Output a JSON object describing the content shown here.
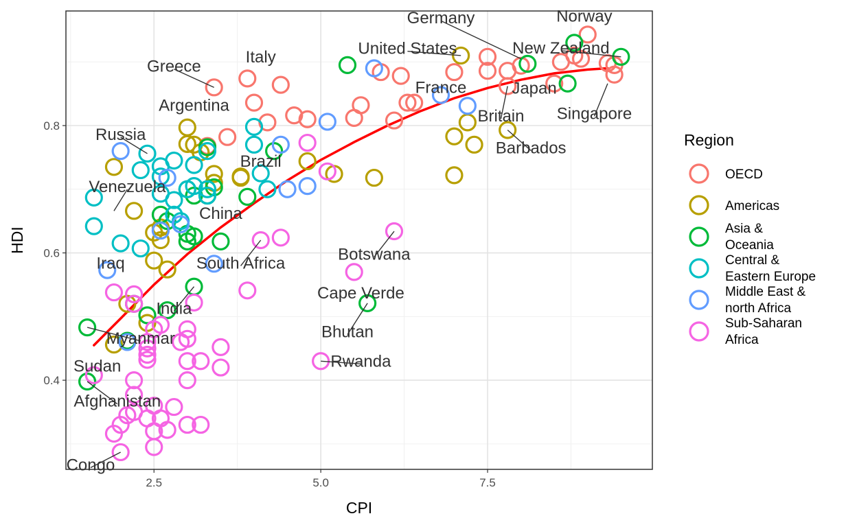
{
  "chart_data": {
    "type": "scatter",
    "title": "",
    "xlabel": "CPI",
    "ylabel": "HDI",
    "xlim": [
      1.18,
      9.97
    ],
    "ylim": [
      0.26,
      0.98
    ],
    "xticks": [
      2.5,
      5.0,
      7.5
    ],
    "xtick_labels": [
      "2.5",
      "5.0",
      "7.5"
    ],
    "yticks": [
      0.4,
      0.6,
      0.8
    ],
    "ytick_labels": [
      "0.4",
      "0.6",
      "0.8"
    ],
    "grid": true,
    "legend": {
      "title": "Region",
      "placement": "right",
      "entries": [
        {
          "key": "OECD",
          "lines": [
            "OECD"
          ],
          "color": "#F8766D"
        },
        {
          "key": "Americas",
          "lines": [
            "Americas"
          ],
          "color": "#B79F00"
        },
        {
          "key": "Asia & Oceania",
          "lines": [
            "Asia &",
            "Oceania"
          ],
          "color": "#00BA38"
        },
        {
          "key": "Central & Eastern Europe",
          "lines": [
            "Central &",
            "Eastern Europe"
          ],
          "color": "#00BFC4"
        },
        {
          "key": "Middle East & north Africa",
          "lines": [
            "Middle East &",
            "north Africa"
          ],
          "color": "#619CFF"
        },
        {
          "key": "Sub-Saharan Africa",
          "lines": [
            "Sub-Saharan",
            "Africa"
          ],
          "color": "#F564E3"
        }
      ]
    },
    "trend_line": {
      "color": "#FF0000",
      "points": [
        [
          1.6,
          0.455
        ],
        [
          2.0,
          0.497
        ],
        [
          2.5,
          0.55
        ],
        [
          3.0,
          0.598
        ],
        [
          3.5,
          0.64
        ],
        [
          4.0,
          0.678
        ],
        [
          4.5,
          0.714
        ],
        [
          5.0,
          0.746
        ],
        [
          5.5,
          0.774
        ],
        [
          6.0,
          0.8
        ],
        [
          6.5,
          0.823
        ],
        [
          7.0,
          0.843
        ],
        [
          7.5,
          0.859
        ],
        [
          8.0,
          0.872
        ],
        [
          8.5,
          0.882
        ],
        [
          9.0,
          0.888
        ],
        [
          9.3,
          0.89
        ]
      ]
    },
    "series": [
      {
        "name": "OECD",
        "color": "#F8766D",
        "points": [
          [
            3.4,
            0.86
          ],
          [
            3.9,
            0.874
          ],
          [
            4.4,
            0.864
          ],
          [
            4.0,
            0.836
          ],
          [
            4.2,
            0.805
          ],
          [
            3.3,
            0.768
          ],
          [
            3.6,
            0.782
          ],
          [
            4.6,
            0.816
          ],
          [
            4.8,
            0.81
          ],
          [
            5.5,
            0.812
          ],
          [
            5.6,
            0.832
          ],
          [
            5.9,
            0.884
          ],
          [
            6.2,
            0.878
          ],
          [
            6.3,
            0.836
          ],
          [
            6.4,
            0.836
          ],
          [
            6.1,
            0.808
          ],
          [
            7.0,
            0.884
          ],
          [
            7.5,
            0.908
          ],
          [
            7.5,
            0.886
          ],
          [
            7.8,
            0.886
          ],
          [
            7.8,
            0.862
          ],
          [
            8.0,
            0.894
          ],
          [
            8.5,
            0.866
          ],
          [
            8.6,
            0.9
          ],
          [
            8.8,
            0.91
          ],
          [
            8.9,
            0.905
          ],
          [
            9.0,
            0.943
          ],
          [
            9.3,
            0.898
          ],
          [
            9.4,
            0.895
          ],
          [
            9.4,
            0.88
          ]
        ]
      },
      {
        "name": "Americas",
        "color": "#B79F00",
        "points": [
          [
            3.0,
            0.797
          ],
          [
            3.0,
            0.771
          ],
          [
            3.1,
            0.77
          ],
          [
            3.2,
            0.758
          ],
          [
            3.4,
            0.724
          ],
          [
            3.4,
            0.71
          ],
          [
            1.9,
            0.735
          ],
          [
            2.2,
            0.666
          ],
          [
            2.5,
            0.632
          ],
          [
            2.6,
            0.64
          ],
          [
            2.6,
            0.62
          ],
          [
            2.5,
            0.588
          ],
          [
            2.7,
            0.574
          ],
          [
            3.8,
            0.718
          ],
          [
            3.8,
            0.72
          ],
          [
            4.8,
            0.744
          ],
          [
            5.2,
            0.724
          ],
          [
            5.8,
            0.718
          ],
          [
            7.0,
            0.722
          ],
          [
            7.0,
            0.783
          ],
          [
            7.2,
            0.805
          ],
          [
            7.3,
            0.77
          ],
          [
            7.8,
            0.793
          ],
          [
            7.1,
            0.91
          ],
          [
            1.9,
            0.456
          ],
          [
            2.1,
            0.52
          ],
          [
            2.4,
            0.49
          ]
        ]
      },
      {
        "name": "Asia & Oceania",
        "color": "#00BA38",
        "points": [
          [
            1.5,
            0.483
          ],
          [
            1.5,
            0.398
          ],
          [
            2.1,
            0.462
          ],
          [
            2.2,
            0.52
          ],
          [
            2.4,
            0.502
          ],
          [
            2.7,
            0.51
          ],
          [
            3.1,
            0.547
          ],
          [
            3.0,
            0.618
          ],
          [
            3.1,
            0.626
          ],
          [
            3.0,
            0.63
          ],
          [
            3.5,
            0.618
          ],
          [
            2.7,
            0.65
          ],
          [
            2.6,
            0.66
          ],
          [
            3.1,
            0.69
          ],
          [
            3.3,
            0.69
          ],
          [
            3.4,
            0.703
          ],
          [
            3.9,
            0.688
          ],
          [
            3.0,
            0.7
          ],
          [
            3.3,
            0.766
          ],
          [
            4.3,
            0.76
          ],
          [
            5.4,
            0.895
          ],
          [
            5.7,
            0.521
          ],
          [
            8.7,
            0.866
          ],
          [
            8.8,
            0.93
          ],
          [
            9.5,
            0.908
          ],
          [
            8.1,
            0.897
          ]
        ]
      },
      {
        "name": "Central & Eastern Europe",
        "color": "#00BFC4",
        "points": [
          [
            1.6,
            0.687
          ],
          [
            1.6,
            0.642
          ],
          [
            2.4,
            0.756
          ],
          [
            2.6,
            0.736
          ],
          [
            2.8,
            0.745
          ],
          [
            3.1,
            0.738
          ],
          [
            3.3,
            0.76
          ],
          [
            2.3,
            0.73
          ],
          [
            2.6,
            0.72
          ],
          [
            2.6,
            0.693
          ],
          [
            2.8,
            0.683
          ],
          [
            2.8,
            0.66
          ],
          [
            3.0,
            0.7
          ],
          [
            3.1,
            0.705
          ],
          [
            3.3,
            0.69
          ],
          [
            4.0,
            0.798
          ],
          [
            4.0,
            0.77
          ],
          [
            4.1,
            0.725
          ],
          [
            4.2,
            0.7
          ],
          [
            2.0,
            0.615
          ],
          [
            2.3,
            0.607
          ],
          [
            2.9,
            0.65
          ],
          [
            3.3,
            0.7
          ]
        ]
      },
      {
        "name": "Middle East & north Africa",
        "color": "#619CFF",
        "points": [
          [
            2.0,
            0.76
          ],
          [
            1.8,
            0.573
          ],
          [
            2.6,
            0.635
          ],
          [
            2.7,
            0.718
          ],
          [
            2.9,
            0.645
          ],
          [
            3.4,
            0.583
          ],
          [
            4.4,
            0.77
          ],
          [
            4.5,
            0.7
          ],
          [
            4.8,
            0.705
          ],
          [
            5.1,
            0.806
          ],
          [
            5.8,
            0.89
          ],
          [
            6.8,
            0.848
          ],
          [
            7.2,
            0.831
          ],
          [
            2.1,
            0.46
          ]
        ]
      },
      {
        "name": "Sub-Saharan Africa",
        "color": "#F564E3",
        "points": [
          [
            2.0,
            0.287
          ],
          [
            1.9,
            0.316
          ],
          [
            2.0,
            0.33
          ],
          [
            2.1,
            0.345
          ],
          [
            2.2,
            0.35
          ],
          [
            2.2,
            0.377
          ],
          [
            2.2,
            0.4
          ],
          [
            2.4,
            0.34
          ],
          [
            2.5,
            0.32
          ],
          [
            2.5,
            0.295
          ],
          [
            2.5,
            0.36
          ],
          [
            2.6,
            0.34
          ],
          [
            2.7,
            0.322
          ],
          [
            2.8,
            0.358
          ],
          [
            3.0,
            0.33
          ],
          [
            3.2,
            0.33
          ],
          [
            3.0,
            0.4
          ],
          [
            3.0,
            0.43
          ],
          [
            3.2,
            0.43
          ],
          [
            3.5,
            0.42
          ],
          [
            3.5,
            0.452
          ],
          [
            3.0,
            0.465
          ],
          [
            2.9,
            0.46
          ],
          [
            3.0,
            0.48
          ],
          [
            2.4,
            0.432
          ],
          [
            2.4,
            0.44
          ],
          [
            2.4,
            0.45
          ],
          [
            2.4,
            0.46
          ],
          [
            2.5,
            0.48
          ],
          [
            2.6,
            0.487
          ],
          [
            1.6,
            0.408
          ],
          [
            1.9,
            0.538
          ],
          [
            2.2,
            0.535
          ],
          [
            2.2,
            0.52
          ],
          [
            3.1,
            0.522
          ],
          [
            3.9,
            0.541
          ],
          [
            4.1,
            0.62
          ],
          [
            4.4,
            0.624
          ],
          [
            5.0,
            0.43
          ],
          [
            5.5,
            0.57
          ],
          [
            6.1,
            0.634
          ],
          [
            4.8,
            0.773
          ],
          [
            5.1,
            0.728
          ]
        ]
      }
    ],
    "annotations": [
      {
        "text": "Norway",
        "x": 9.0,
        "y": 0.943,
        "tx": 8.95,
        "ty": 0.972
      },
      {
        "text": "Germany",
        "x": 8.0,
        "y": 0.905,
        "tx": 6.8,
        "ty": 0.969
      },
      {
        "text": "New Zealand",
        "x": 9.5,
        "y": 0.908,
        "tx": 8.6,
        "ty": 0.922
      },
      {
        "text": "United States",
        "x": 7.1,
        "y": 0.91,
        "tx": 6.3,
        "ty": 0.921
      },
      {
        "text": "Italy",
        "x": 3.9,
        "y": 0.874,
        "tx": 4.1,
        "ty": 0.908
      },
      {
        "text": "Greece",
        "x": 3.4,
        "y": 0.86,
        "tx": 2.8,
        "ty": 0.893
      },
      {
        "text": "Japan",
        "x": 8.0,
        "y": 0.894,
        "tx": 8.2,
        "ty": 0.859
      },
      {
        "text": "France",
        "x": 7.0,
        "y": 0.884,
        "tx": 6.8,
        "ty": 0.86
      },
      {
        "text": "Britain",
        "x": 7.8,
        "y": 0.862,
        "tx": 7.7,
        "ty": 0.815
      },
      {
        "text": "Singapore",
        "x": 9.3,
        "y": 0.866,
        "tx": 9.1,
        "ty": 0.819
      },
      {
        "text": "Argentina",
        "x": 3.0,
        "y": 0.797,
        "tx": 3.1,
        "ty": 0.832
      },
      {
        "text": "Barbados",
        "x": 7.8,
        "y": 0.793,
        "tx": 8.15,
        "ty": 0.765
      },
      {
        "text": "Russia",
        "x": 2.4,
        "y": 0.756,
        "tx": 2.0,
        "ty": 0.786
      },
      {
        "text": "Brazil",
        "x": 3.8,
        "y": 0.718,
        "tx": 4.1,
        "ty": 0.744
      },
      {
        "text": "Venezuela",
        "x": 1.9,
        "y": 0.666,
        "tx": 2.1,
        "ty": 0.704
      },
      {
        "text": "China",
        "x": 3.5,
        "y": 0.687,
        "tx": 3.5,
        "ty": 0.662
      },
      {
        "text": "Botswana",
        "x": 6.1,
        "y": 0.634,
        "tx": 5.8,
        "ty": 0.598
      },
      {
        "text": "Iraq",
        "x": 1.8,
        "y": 0.573,
        "tx": 1.85,
        "ty": 0.584
      },
      {
        "text": "South Africa",
        "x": 4.1,
        "y": 0.62,
        "tx": 3.8,
        "ty": 0.584
      },
      {
        "text": "Cape Verde",
        "x": 5.5,
        "y": 0.57,
        "tx": 5.6,
        "ty": 0.537
      },
      {
        "text": "India",
        "x": 3.1,
        "y": 0.547,
        "tx": 2.8,
        "ty": 0.513
      },
      {
        "text": "Bhutan",
        "x": 5.7,
        "y": 0.521,
        "tx": 5.4,
        "ty": 0.476
      },
      {
        "text": "Myanmar",
        "x": 1.5,
        "y": 0.483,
        "tx": 2.3,
        "ty": 0.466
      },
      {
        "text": "Rwanda",
        "x": 5.0,
        "y": 0.43,
        "tx": 5.6,
        "ty": 0.43
      },
      {
        "text": "Sudan",
        "x": 1.6,
        "y": 0.408,
        "tx": 1.65,
        "ty": 0.422
      },
      {
        "text": "Afghanistan",
        "x": 1.5,
        "y": 0.398,
        "tx": 1.95,
        "ty": 0.367
      },
      {
        "text": "Congo",
        "x": 2.0,
        "y": 0.287,
        "tx": 1.55,
        "ty": 0.267
      }
    ]
  }
}
